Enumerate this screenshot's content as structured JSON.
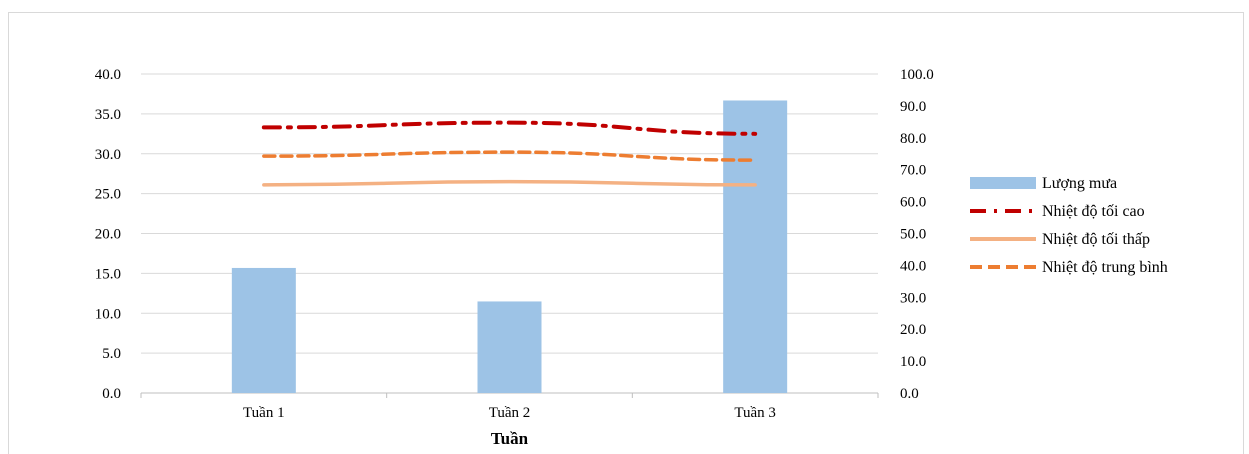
{
  "chart_data": {
    "type": "bar",
    "xlabel": "Tuần",
    "categories": [
      "Tuần 1",
      "Tuần 2",
      "Tuần 3"
    ],
    "y_left": {
      "lim": [
        0,
        40
      ],
      "step": 5,
      "ticks": [
        "0.0",
        "5.0",
        "10.0",
        "15.0",
        "20.0",
        "25.0",
        "30.0",
        "35.0",
        "40.0"
      ]
    },
    "y_right": {
      "lim": [
        0,
        100
      ],
      "step": 10,
      "ticks": [
        "0.0",
        "10.0",
        "20.0",
        "30.0",
        "40.0",
        "50.0",
        "60.0",
        "70.0",
        "80.0",
        "90.0",
        "100.0"
      ]
    },
    "grid": true,
    "legend_position": "right",
    "series": [
      {
        "name": "Lượng mưa",
        "kind": "bar",
        "axis": "right",
        "color": "#9dc3e6",
        "values": [
          39.2,
          28.7,
          91.7
        ]
      },
      {
        "name": "Nhiệt độ tối cao",
        "kind": "line",
        "axis": "left",
        "color": "#c00000",
        "dash": "dashdot",
        "values": [
          33.3,
          33.9,
          32.5
        ]
      },
      {
        "name": "Nhiệt độ tối thấp",
        "kind": "line",
        "axis": "left",
        "color": "#f4b183",
        "dash": "solid",
        "values": [
          26.1,
          26.5,
          26.1
        ]
      },
      {
        "name": "Nhiệt độ trung bình",
        "kind": "line",
        "axis": "left",
        "color": "#ed7d31",
        "dash": "dash",
        "values": [
          29.7,
          30.2,
          29.2
        ]
      }
    ]
  }
}
